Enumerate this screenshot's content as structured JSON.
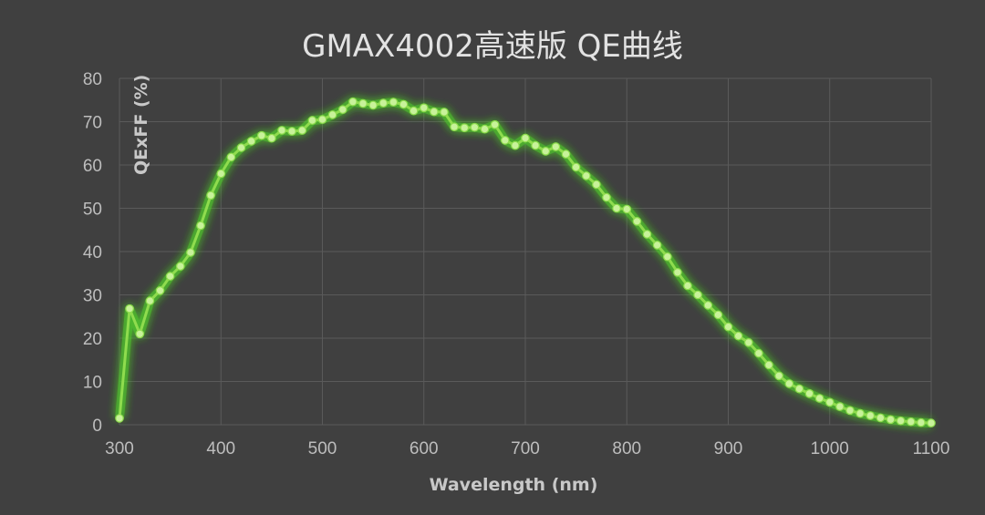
{
  "chart_data": {
    "type": "line",
    "title": "GMAX4002高速版 QE曲线",
    "xlabel": "Wavelength (nm)",
    "ylabel": "QExFF (%)",
    "xlim": [
      300,
      1100
    ],
    "ylim": [
      0,
      80
    ],
    "x_ticks": [
      300,
      400,
      500,
      600,
      700,
      800,
      900,
      1000,
      1100
    ],
    "y_ticks": [
      0,
      10,
      20,
      30,
      40,
      50,
      60,
      70,
      80
    ],
    "grid": true,
    "legend": "none",
    "series": [
      {
        "color": "#8fdc4e",
        "glow_color": "#4fd12a",
        "x": [
          300,
          310,
          320,
          330,
          340,
          350,
          360,
          370,
          380,
          390,
          400,
          410,
          420,
          430,
          440,
          450,
          460,
          470,
          480,
          490,
          500,
          510,
          520,
          530,
          540,
          550,
          560,
          570,
          580,
          590,
          600,
          610,
          620,
          630,
          640,
          650,
          660,
          670,
          680,
          690,
          700,
          710,
          720,
          730,
          740,
          750,
          760,
          770,
          780,
          790,
          800,
          810,
          820,
          830,
          840,
          850,
          860,
          870,
          880,
          890,
          900,
          910,
          920,
          930,
          940,
          950,
          960,
          970,
          980,
          990,
          1000,
          1010,
          1020,
          1030,
          1040,
          1050,
          1060,
          1070,
          1080,
          1090,
          1100
        ],
        "y": [
          1.5,
          26.8,
          21,
          28.6,
          31,
          34.3,
          36.6,
          39.8,
          46,
          53,
          58,
          61.8,
          64,
          65.5,
          66.8,
          66.2,
          68,
          67.8,
          68,
          70.3,
          70.5,
          71.6,
          72.8,
          74.6,
          74.2,
          73.8,
          74.3,
          74.5,
          74,
          72.5,
          73.2,
          72.3,
          72.2,
          68.8,
          68.6,
          68.7,
          68.3,
          69.3,
          65.7,
          64.5,
          66.2,
          64.5,
          63.2,
          64.2,
          62.5,
          59.5,
          57.5,
          55.5,
          52.5,
          50,
          49.8,
          47,
          44,
          41.5,
          38.8,
          35.2,
          32.1,
          30,
          27.6,
          25.4,
          22.6,
          20.5,
          19,
          16.5,
          13.8,
          11.3,
          9.5,
          8.3,
          7.2,
          6.1,
          5.2,
          4.2,
          3.3,
          2.6,
          2.1,
          1.6,
          1.2,
          0.9,
          0.7,
          0.5,
          0.4
        ]
      }
    ]
  }
}
